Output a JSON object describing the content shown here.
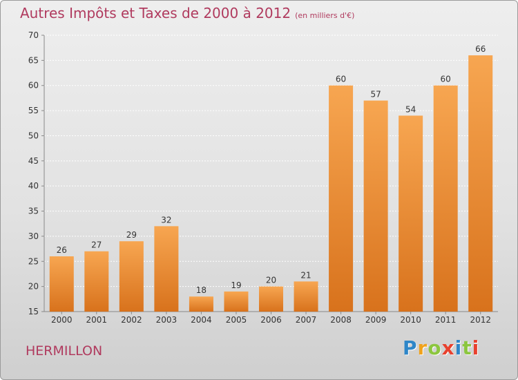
{
  "title": "Autres Impôts et Taxes de 2000 à 2012",
  "unit": "(en milliers d'€)",
  "commune": "HERMILLON",
  "logo": {
    "letters": [
      "P",
      "r",
      "o",
      "x",
      "i",
      "t",
      "i"
    ],
    "colors": [
      "#2e86c8",
      "#f0a21c",
      "#8cc63f",
      "#e8412e",
      "#2e86c8",
      "#8cc63f",
      "#e8412e"
    ]
  },
  "chart_data": {
    "type": "bar",
    "categories": [
      "2000",
      "2001",
      "2002",
      "2003",
      "2004",
      "2005",
      "2006",
      "2007",
      "2008",
      "2009",
      "2010",
      "2011",
      "2012"
    ],
    "values": [
      26,
      27,
      29,
      32,
      18,
      19,
      20,
      21,
      60,
      57,
      54,
      60,
      66
    ],
    "ylim": [
      15,
      70
    ],
    "yticks": [
      15,
      20,
      25,
      30,
      35,
      40,
      45,
      50,
      55,
      60,
      65,
      70
    ],
    "grid": true,
    "bar_color": "#f0922e",
    "title_color": "#b03a5e"
  }
}
